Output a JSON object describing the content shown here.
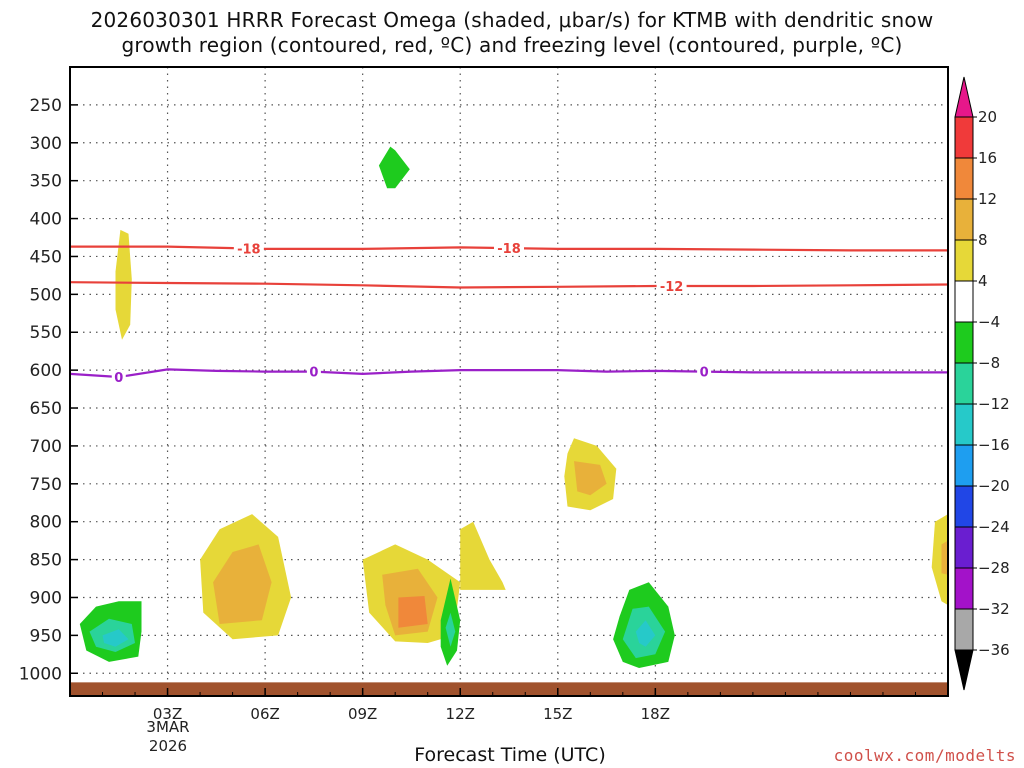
{
  "title_line1": "2026030301 HRRR Forecast Omega (shaded, μbar/s) for KTMB with dendritic snow",
  "title_line2": "growth region (contoured, red, ºC) and freezing level (contoured, purple, ºC)",
  "x_axis_label": "Forecast Time (UTC)",
  "x_sub_labels": [
    "3MAR",
    "2026"
  ],
  "credit": "coolwx.com/modelts",
  "chart_data": {
    "type": "heatmap",
    "x_unit": "hours since 2026-03-03 00Z",
    "x_range": [
      0,
      27
    ],
    "x_ticks": [
      {
        "v": 3,
        "label": "03Z"
      },
      {
        "v": 6,
        "label": "06Z"
      },
      {
        "v": 9,
        "label": "09Z"
      },
      {
        "v": 12,
        "label": "12Z"
      },
      {
        "v": 15,
        "label": "15Z"
      },
      {
        "v": 18,
        "label": "18Z"
      }
    ],
    "y_unit": "hPa",
    "y_range": [
      200,
      1030
    ],
    "y_ticks": [
      250,
      300,
      350,
      400,
      450,
      500,
      550,
      600,
      650,
      700,
      750,
      800,
      850,
      900,
      950,
      1000
    ],
    "grid": true,
    "colorbar": {
      "labels": [
        "20",
        "16",
        "12",
        "8",
        "4",
        "−4",
        "−8",
        "−12",
        "−16",
        "−20",
        "−24",
        "−28",
        "−32",
        "−36"
      ],
      "bins": [
        {
          "color": "#e6178a"
        },
        {
          "color": "#f03a3a"
        },
        {
          "color": "#f0883a"
        },
        {
          "color": "#e8b13a"
        },
        {
          "color": "#e6d838"
        },
        {
          "color": "#ffffff"
        },
        {
          "color": "#1ecb1e"
        },
        {
          "color": "#2ad39a"
        },
        {
          "color": "#26c9c9"
        },
        {
          "color": "#1e9ef0"
        },
        {
          "color": "#2146e6"
        },
        {
          "color": "#6a1ed0"
        },
        {
          "color": "#a312c9"
        },
        {
          "color": "#a8a8a8"
        },
        {
          "color": "#000000"
        }
      ]
    },
    "contours": [
      {
        "label": "-18",
        "color": "#e8413a",
        "points": [
          [
            0,
            437
          ],
          [
            3,
            437
          ],
          [
            6,
            440
          ],
          [
            9,
            440
          ],
          [
            12,
            438
          ],
          [
            15,
            440
          ],
          [
            18,
            440
          ],
          [
            21,
            441
          ],
          [
            24,
            442
          ],
          [
            27,
            442
          ]
        ],
        "label_at": [
          5.5,
          13.5
        ]
      },
      {
        "label": "-12",
        "color": "#e8413a",
        "points": [
          [
            0,
            484
          ],
          [
            3,
            485
          ],
          [
            6,
            486
          ],
          [
            9,
            488
          ],
          [
            12,
            491
          ],
          [
            15,
            490
          ],
          [
            18,
            489
          ],
          [
            21,
            489
          ],
          [
            24,
            488
          ],
          [
            27,
            487
          ]
        ],
        "label_at": [
          18.5
        ]
      },
      {
        "label": "0",
        "color": "#9a20c8",
        "points": [
          [
            0,
            605
          ],
          [
            1.5,
            609
          ],
          [
            3,
            599
          ],
          [
            4.5,
            601
          ],
          [
            6,
            602
          ],
          [
            7.5,
            602
          ],
          [
            9,
            605
          ],
          [
            10.5,
            602
          ],
          [
            12,
            600
          ],
          [
            13.5,
            600
          ],
          [
            15,
            600
          ],
          [
            16.5,
            602
          ],
          [
            18,
            601
          ],
          [
            19.5,
            602
          ],
          [
            21,
            603
          ],
          [
            24,
            603
          ],
          [
            27,
            603
          ]
        ],
        "label_at": [
          1.5,
          7.5,
          19.5
        ]
      }
    ],
    "regions": [
      {
        "value": 5,
        "color": "#e6d838",
        "points": [
          [
            1.4,
            470
          ],
          [
            1.55,
            415
          ],
          [
            1.8,
            420
          ],
          [
            1.9,
            480
          ],
          [
            1.85,
            540
          ],
          [
            1.6,
            560
          ],
          [
            1.4,
            520
          ]
        ]
      },
      {
        "value": 5,
        "color": "#e6d838",
        "points": [
          [
            4,
            850
          ],
          [
            4.6,
            810
          ],
          [
            5.6,
            790
          ],
          [
            6.4,
            820
          ],
          [
            6.8,
            900
          ],
          [
            6.4,
            950
          ],
          [
            5.0,
            955
          ],
          [
            4.1,
            920
          ]
        ]
      },
      {
        "value": 9,
        "color": "#e8b13a",
        "points": [
          [
            4.4,
            880
          ],
          [
            5.0,
            840
          ],
          [
            5.8,
            830
          ],
          [
            6.2,
            880
          ],
          [
            5.9,
            930
          ],
          [
            4.6,
            935
          ]
        ]
      },
      {
        "value": 5,
        "color": "#e6d838",
        "points": [
          [
            9.0,
            850
          ],
          [
            10.0,
            830
          ],
          [
            11.0,
            850
          ],
          [
            12.0,
            880
          ],
          [
            11.8,
            950
          ],
          [
            11.0,
            960
          ],
          [
            10.0,
            958
          ],
          [
            9.2,
            920
          ]
        ]
      },
      {
        "value": 9,
        "color": "#e8b13a",
        "points": [
          [
            9.6,
            870
          ],
          [
            10.7,
            862
          ],
          [
            11.3,
            900
          ],
          [
            11.0,
            945
          ],
          [
            10.0,
            950
          ],
          [
            9.7,
            910
          ]
        ]
      },
      {
        "value": 13,
        "color": "#f0883a",
        "points": [
          [
            10.1,
            900
          ],
          [
            10.9,
            898
          ],
          [
            11.0,
            935
          ],
          [
            10.1,
            940
          ]
        ]
      },
      {
        "value": 5,
        "color": "#e6d838",
        "points": [
          [
            12.0,
            810
          ],
          [
            12.4,
            800
          ],
          [
            12.9,
            850
          ],
          [
            13.3,
            880
          ],
          [
            13.4,
            890
          ],
          [
            12.0,
            890
          ]
        ]
      },
      {
        "value": 5,
        "color": "#e6d838",
        "points": [
          [
            15.3,
            710
          ],
          [
            15.5,
            690
          ],
          [
            16.2,
            700
          ],
          [
            16.8,
            730
          ],
          [
            16.7,
            770
          ],
          [
            16.0,
            785
          ],
          [
            15.3,
            780
          ],
          [
            15.2,
            740
          ]
        ]
      },
      {
        "value": 9,
        "color": "#e8b13a",
        "points": [
          [
            15.5,
            720
          ],
          [
            16.3,
            725
          ],
          [
            16.5,
            750
          ],
          [
            16.0,
            765
          ],
          [
            15.6,
            760
          ]
        ]
      },
      {
        "value": 5,
        "color": "#e6d838",
        "points": [
          [
            17.6,
            935
          ],
          [
            17.9,
            925
          ],
          [
            18.0,
            945
          ],
          [
            17.8,
            960
          ]
        ]
      },
      {
        "value": 5,
        "color": "#e6d838",
        "points": [
          [
            26.6,
            800
          ],
          [
            27.0,
            790
          ],
          [
            27.0,
            910
          ],
          [
            26.8,
            905
          ],
          [
            26.5,
            860
          ]
        ]
      },
      {
        "value": 9,
        "color": "#e8b13a",
        "points": [
          [
            26.8,
            830
          ],
          [
            27.0,
            825
          ],
          [
            27.0,
            870
          ],
          [
            26.8,
            868
          ]
        ]
      },
      {
        "value": -5,
        "color": "#1ecb1e",
        "points": [
          [
            0.3,
            935
          ],
          [
            0.8,
            912
          ],
          [
            1.5,
            905
          ],
          [
            2.2,
            905
          ],
          [
            2.2,
            945
          ],
          [
            2.1,
            978
          ],
          [
            1.2,
            985
          ],
          [
            0.5,
            970
          ]
        ]
      },
      {
        "value": -9,
        "color": "#2ad39a",
        "points": [
          [
            0.6,
            945
          ],
          [
            1.2,
            928
          ],
          [
            1.9,
            935
          ],
          [
            2.0,
            960
          ],
          [
            1.4,
            972
          ],
          [
            0.8,
            965
          ]
        ]
      },
      {
        "value": -13,
        "color": "#26c9c9",
        "points": [
          [
            1.0,
            950
          ],
          [
            1.5,
            942
          ],
          [
            1.8,
            955
          ],
          [
            1.4,
            965
          ],
          [
            1.05,
            960
          ]
        ]
      },
      {
        "value": -5,
        "color": "#1ecb1e",
        "points": [
          [
            11.4,
            930
          ],
          [
            11.7,
            875
          ],
          [
            12.0,
            930
          ],
          [
            11.9,
            970
          ],
          [
            11.6,
            990
          ],
          [
            11.4,
            965
          ]
        ]
      },
      {
        "value": -9,
        "color": "#2ad39a",
        "points": [
          [
            11.55,
            940
          ],
          [
            11.7,
            920
          ],
          [
            11.85,
            945
          ],
          [
            11.7,
            965
          ]
        ]
      },
      {
        "value": -5,
        "color": "#1ecb1e",
        "points": [
          [
            16.7,
            955
          ],
          [
            16.9,
            925
          ],
          [
            17.2,
            890
          ],
          [
            17.8,
            880
          ],
          [
            18.4,
            912
          ],
          [
            18.6,
            950
          ],
          [
            18.4,
            985
          ],
          [
            17.5,
            993
          ],
          [
            17.0,
            985
          ]
        ]
      },
      {
        "value": -9,
        "color": "#2ad39a",
        "points": [
          [
            17.0,
            955
          ],
          [
            17.3,
            915
          ],
          [
            17.8,
            912
          ],
          [
            18.3,
            945
          ],
          [
            18.0,
            975
          ],
          [
            17.4,
            980
          ]
        ]
      },
      {
        "value": -13,
        "color": "#26c9c9",
        "points": [
          [
            17.4,
            945
          ],
          [
            17.7,
            930
          ],
          [
            18.0,
            950
          ],
          [
            17.7,
            965
          ],
          [
            17.5,
            960
          ]
        ]
      },
      {
        "value": -5,
        "color": "#1ecb1e",
        "points": [
          [
            9.5,
            330
          ],
          [
            9.85,
            305
          ],
          [
            10.0,
            310
          ],
          [
            10.45,
            335
          ],
          [
            10.0,
            360
          ],
          [
            9.75,
            360
          ]
        ]
      }
    ],
    "ground": {
      "color": "#a0522d",
      "from_hpa": 1012,
      "to_hpa": 1030
    }
  }
}
